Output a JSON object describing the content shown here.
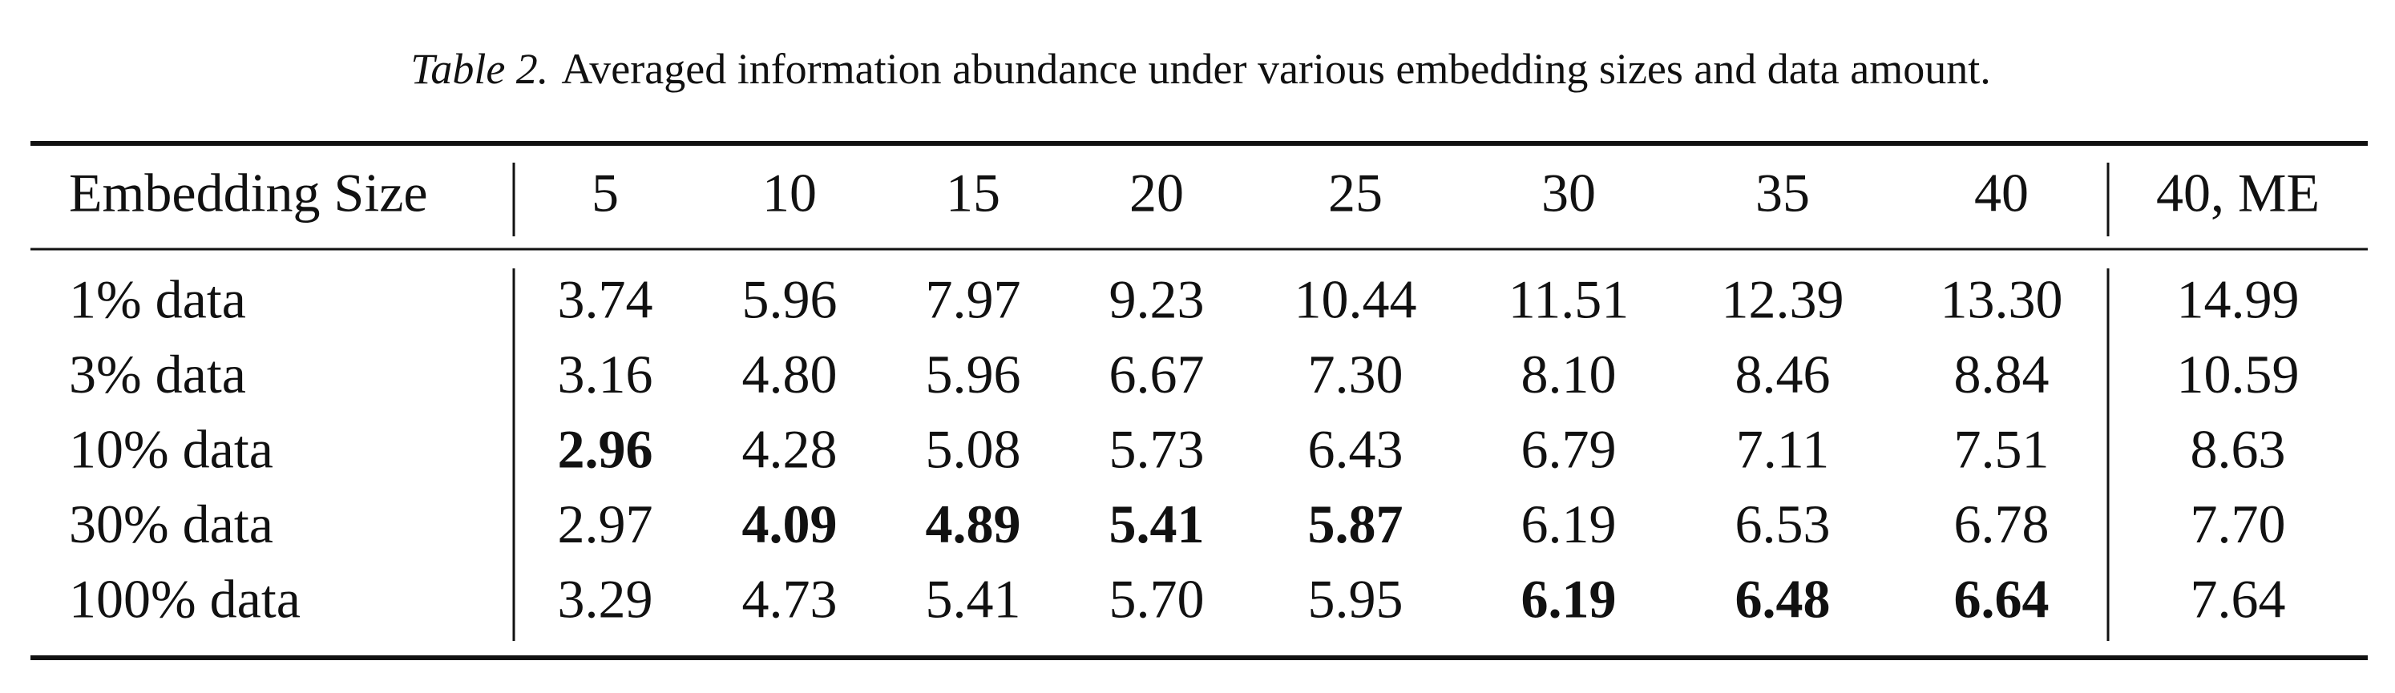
{
  "caption": {
    "label": "Table 2.",
    "text": "Averaged information abundance under various embedding sizes and data amount."
  },
  "table": {
    "header": [
      "Embedding Size",
      "5",
      "10",
      "15",
      "20",
      "25",
      "30",
      "35",
      "40",
      "40, ME"
    ],
    "rows": [
      [
        "1% data",
        "3.74",
        "5.96",
        "7.97",
        "9.23",
        "10.44",
        "11.51",
        "12.39",
        "13.30",
        "14.99"
      ],
      [
        "3% data",
        "3.16",
        "4.80",
        "5.96",
        "6.67",
        "7.30",
        "8.10",
        "8.46",
        "8.84",
        "10.59"
      ],
      [
        "10% data",
        "2.96",
        "4.28",
        "5.08",
        "5.73",
        "6.43",
        "6.79",
        "7.11",
        "7.51",
        "8.63"
      ],
      [
        "30% data",
        "2.97",
        "4.09",
        "4.89",
        "5.41",
        "5.87",
        "6.19",
        "6.53",
        "6.78",
        "7.70"
      ],
      [
        "100% data",
        "3.29",
        "4.73",
        "5.41",
        "5.70",
        "5.95",
        "6.19",
        "6.48",
        "6.64",
        "7.64"
      ]
    ]
  }
}
